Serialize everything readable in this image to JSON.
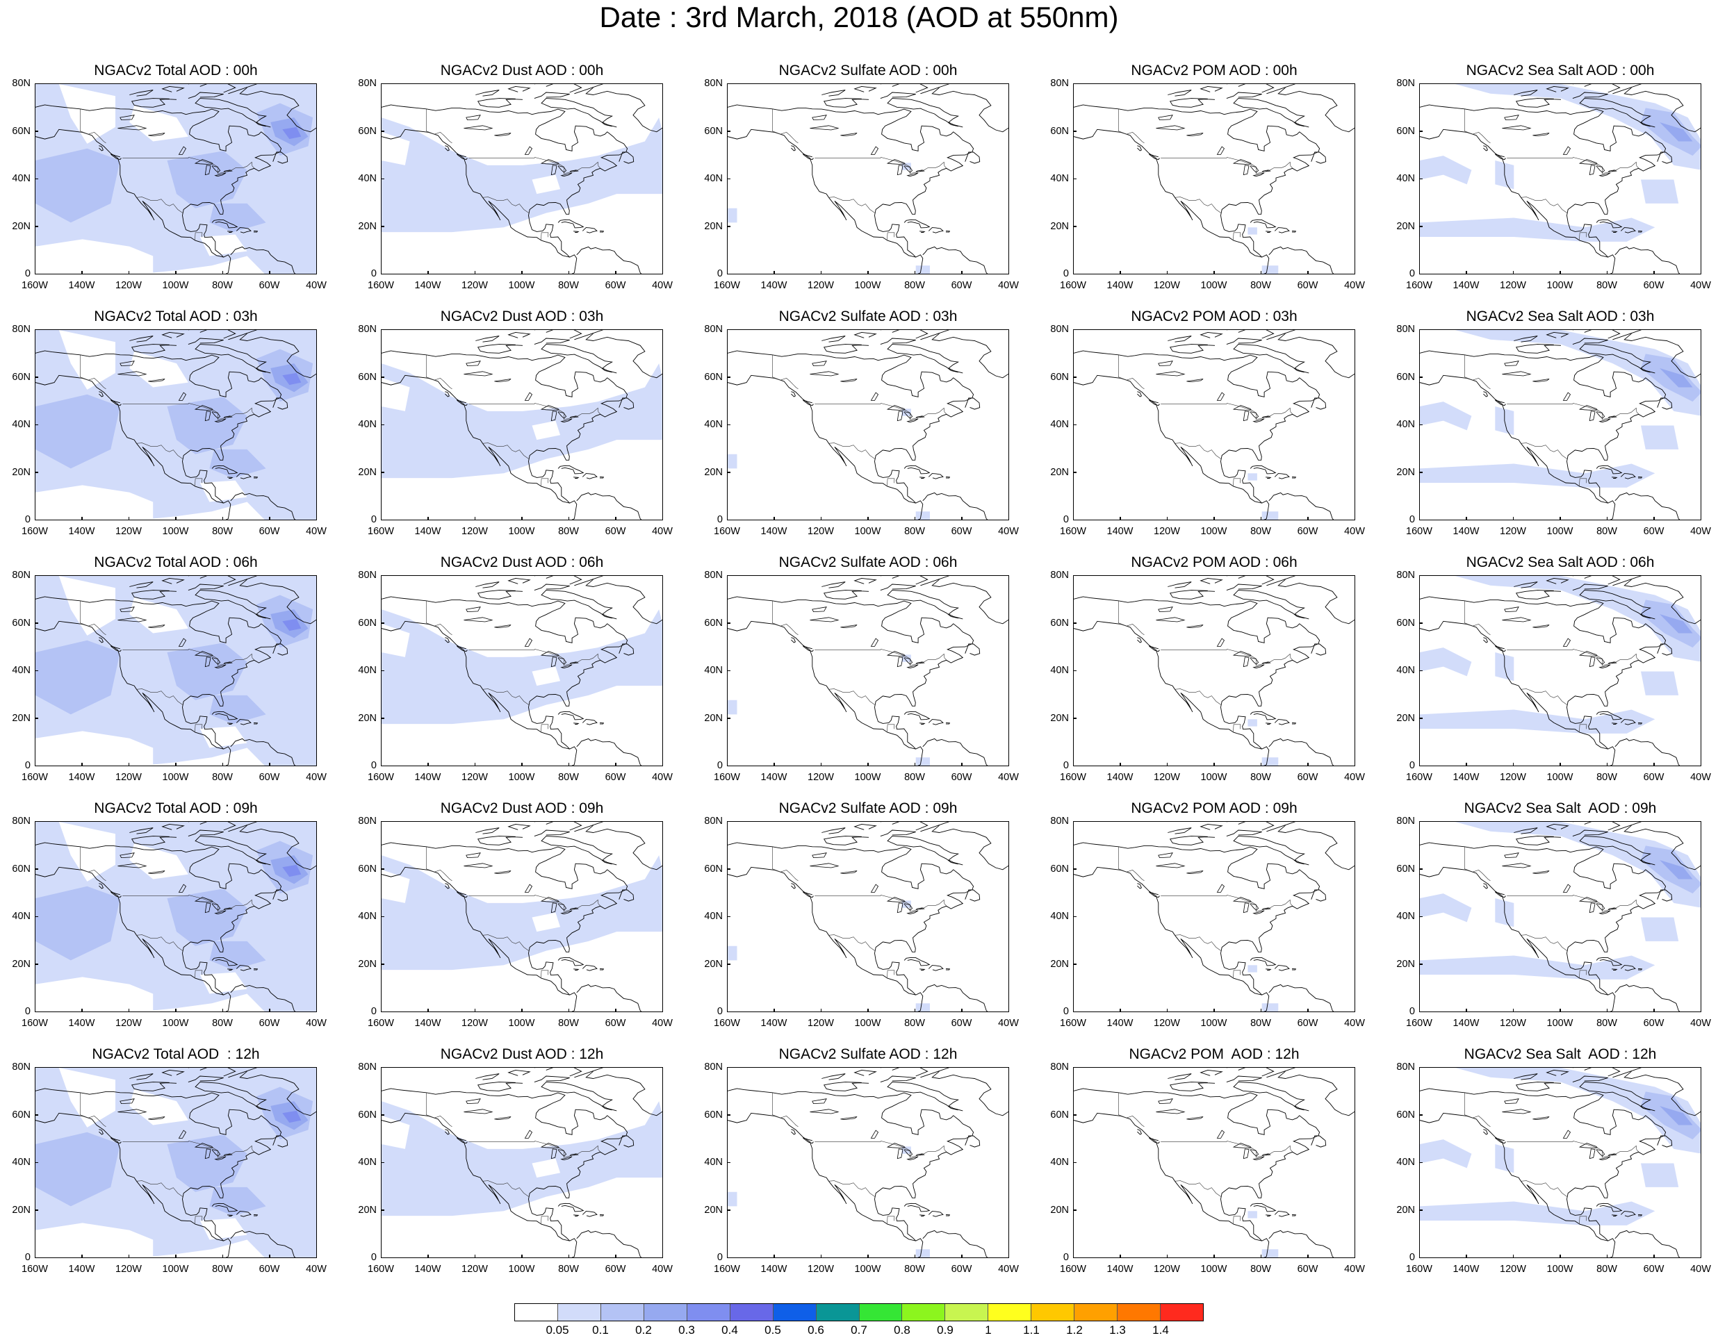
{
  "title": "Date : 3rd March, 2018 (AOD at 550nm)",
  "rows": [
    {
      "hour": "00h",
      "titles": [
        "NGACv2 Total AOD : 00h",
        "NGACv2 Dust AOD : 00h",
        "NGACv2 Sulfate AOD : 00h",
        "NGACv2 POM AOD : 00h",
        "NGACv2 Sea Salt AOD : 00h"
      ]
    },
    {
      "hour": "03h",
      "titles": [
        "NGACv2 Total AOD : 03h",
        "NGACv2 Dust AOD : 03h",
        "NGACv2 Sulfate AOD : 03h",
        "NGACv2 POM AOD : 03h",
        "NGACv2 Sea Salt AOD : 03h"
      ]
    },
    {
      "hour": "06h",
      "titles": [
        "NGACv2 Total AOD : 06h",
        "NGACv2 Dust AOD : 06h",
        "NGACv2 Sulfate AOD : 06h",
        "NGACv2 POM AOD : 06h",
        "NGACv2 Sea Salt AOD : 06h"
      ]
    },
    {
      "hour": "09h",
      "titles": [
        "NGACv2 Total AOD : 09h",
        "NGACv2 Dust AOD : 09h",
        "NGACv2 Sulfate AOD : 09h",
        "NGACv2 POM AOD : 09h",
        "NGACv2 Sea Salt  AOD : 09h"
      ]
    },
    {
      "hour": "12h",
      "titles": [
        "NGACv2 Total AOD  : 12h",
        "NGACv2 Dust AOD : 12h",
        "NGACv2 Sulfate AOD : 12h",
        "NGACv2 POM  AOD : 12h",
        "NGACv2 Sea Salt  AOD : 12h"
      ]
    }
  ],
  "species": [
    "Total",
    "Dust",
    "Sulfate",
    "POM",
    "Sea Salt"
  ],
  "axes": {
    "lat_labels": [
      "80N",
      "60N",
      "40N",
      "20N",
      "0"
    ],
    "lon_labels": [
      "160W",
      "140W",
      "120W",
      "100W",
      "80W",
      "60W",
      "40W"
    ],
    "lat_range": [
      0,
      80
    ],
    "lon_range": [
      -160,
      -40
    ]
  },
  "colorbar": {
    "colors": [
      "#ffffff",
      "#d2dcfa",
      "#b4c3f5",
      "#96a9f0",
      "#7f8ef0",
      "#6868e8",
      "#0f5fe8",
      "#0a9696",
      "#35e635",
      "#8cf51e",
      "#c8f550",
      "#ffff1e",
      "#ffc800",
      "#ffa000",
      "#ff7800",
      "#ff2a1e"
    ],
    "labels": [
      "0.05",
      "0.1",
      "0.2",
      "0.3",
      "0.4",
      "0.5",
      "0.6",
      "0.7",
      "0.8",
      "0.9",
      "1",
      "1.1",
      "1.2",
      "1.3",
      "1.4"
    ]
  }
}
